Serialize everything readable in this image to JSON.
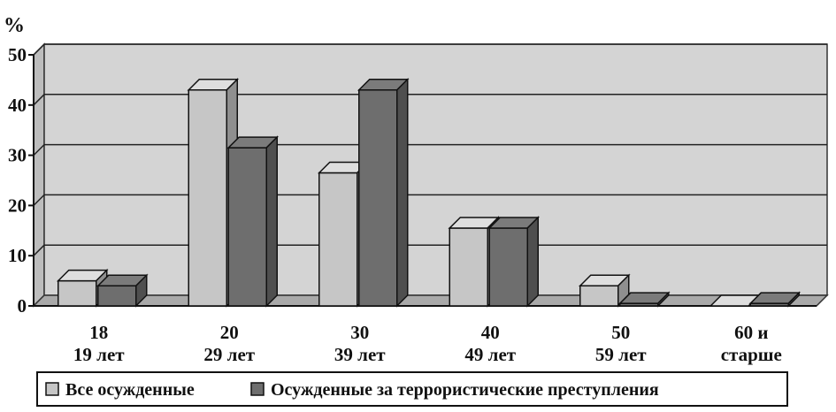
{
  "chart_data": {
    "type": "bar",
    "ylabel": "%",
    "ylim": [
      0,
      50
    ],
    "yticks": [
      "0",
      "10",
      "20",
      "30",
      "40",
      "50"
    ],
    "grid": true,
    "legend_position": "bottom",
    "categories": [
      {
        "lines": [
          "18",
          "19 лет"
        ]
      },
      {
        "lines": [
          "20",
          "29 лет"
        ]
      },
      {
        "lines": [
          "30",
          "39 лет"
        ]
      },
      {
        "lines": [
          "40",
          "49 лет"
        ]
      },
      {
        "lines": [
          "50",
          "59 лет"
        ]
      },
      {
        "lines": [
          "60 и",
          "старше"
        ]
      }
    ],
    "series": [
      {
        "name": "Все осужденные",
        "values": [
          5,
          43,
          26.5,
          15.5,
          4,
          0
        ],
        "color": "#c6c6c6"
      },
      {
        "name": "Осужденные за террористические преступления",
        "values": [
          4,
          31.5,
          43,
          15.5,
          0.5,
          0.5
        ],
        "color": "#6e6e6e"
      }
    ]
  }
}
